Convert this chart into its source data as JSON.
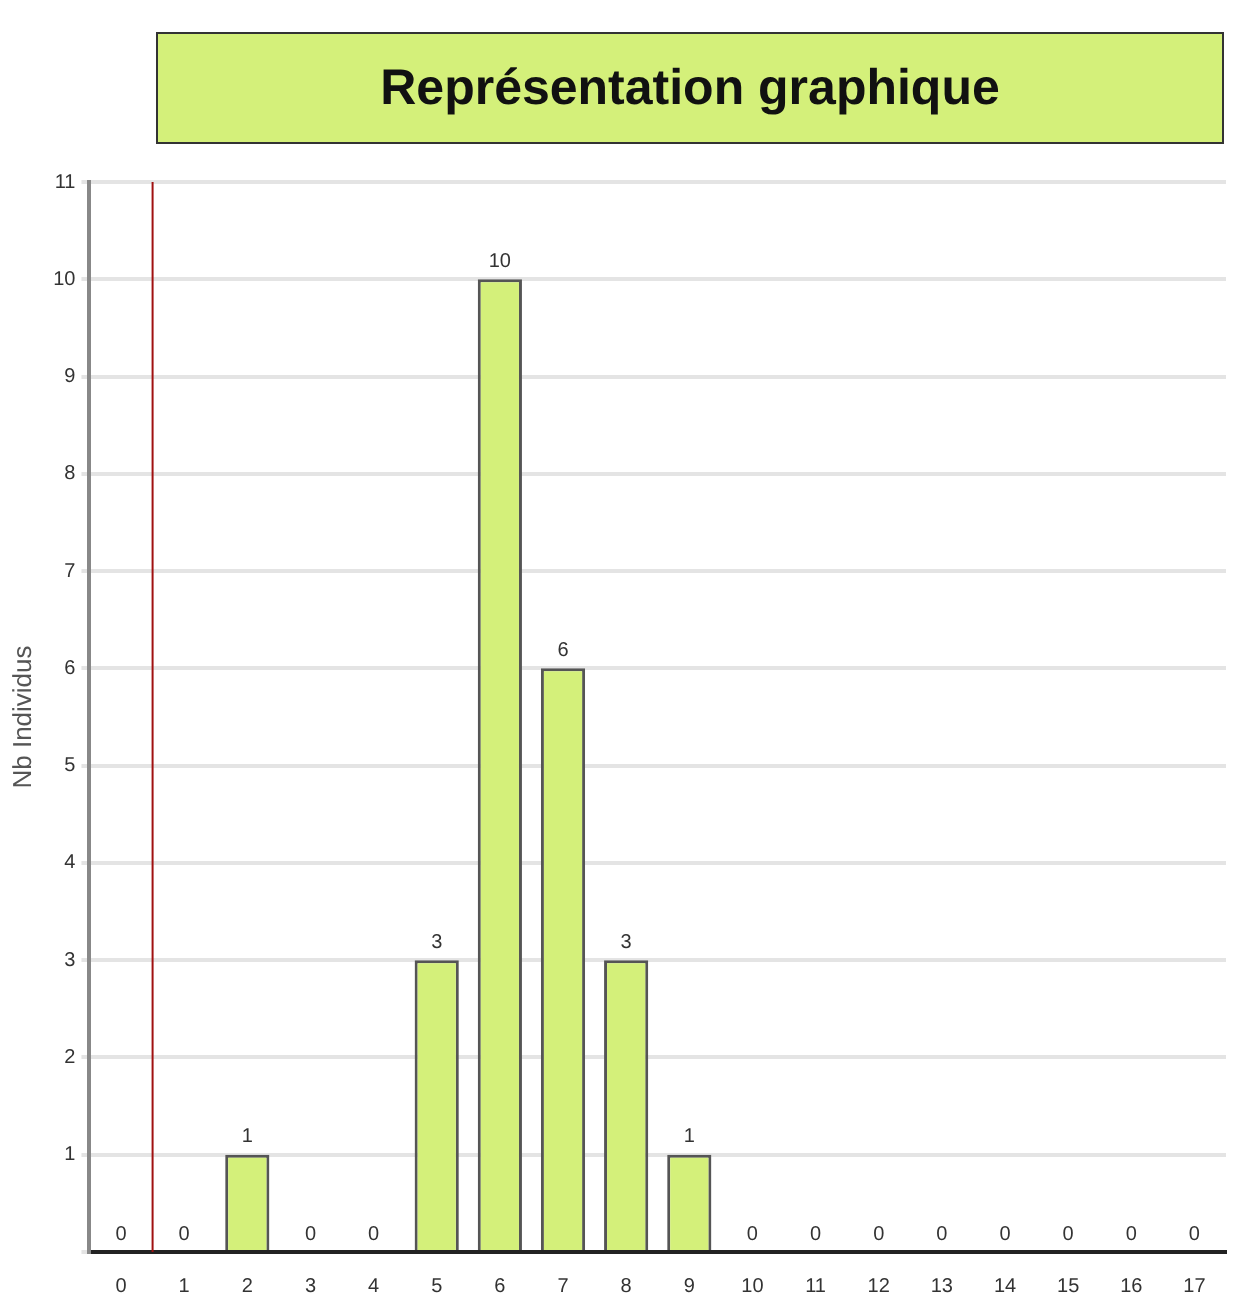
{
  "chart_data": {
    "type": "bar",
    "title": "Représentation graphique",
    "ylabel": "Nb Individus",
    "x": [
      0,
      1,
      2,
      3,
      4,
      5,
      6,
      7,
      8,
      9,
      10,
      11,
      12,
      13,
      14,
      15,
      16,
      17
    ],
    "values": [
      0,
      0,
      1,
      0,
      0,
      3,
      10,
      6,
      3,
      1,
      0,
      0,
      0,
      0,
      0,
      0,
      0,
      0
    ],
    "color": "#d4f07a",
    "xlim": [
      -0.5,
      17.5
    ],
    "xticks": [
      0,
      1,
      2,
      3,
      4,
      5,
      6,
      7,
      8,
      9,
      10,
      11,
      12,
      13,
      14,
      15,
      16,
      17
    ],
    "ylim": [
      0,
      11
    ],
    "yticks": [
      {
        "value": 0,
        "label": null
      },
      1,
      2,
      3,
      4,
      5,
      6,
      7,
      8,
      9,
      10,
      11
    ],
    "ref_lines": [
      {
        "axis": "x",
        "value": 0.5,
        "color": "#a01010"
      }
    ],
    "data_labels": true,
    "grid": "y",
    "legend": false
  }
}
